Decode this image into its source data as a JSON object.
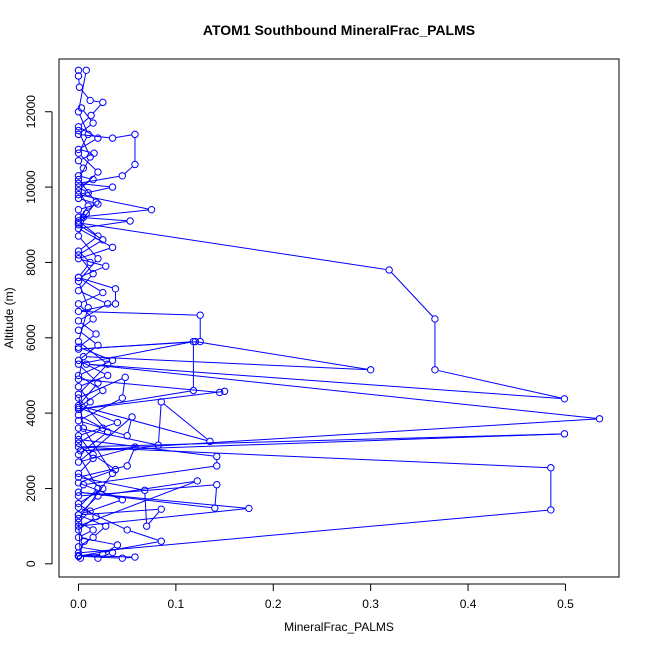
{
  "chart_data": {
    "type": "line",
    "title": "ATOM1 Southbound MineralFrac_PALMS",
    "xlabel": "MineralFrac_PALMS",
    "ylabel": "Altitude (m)",
    "xlim": [
      -0.02,
      0.555
    ],
    "ylim": [
      -350,
      13400
    ],
    "xticks": [
      0.0,
      0.1,
      0.2,
      0.3,
      0.4,
      0.5
    ],
    "xtick_labels": [
      "0.0",
      "0.1",
      "0.2",
      "0.3",
      "0.4",
      "0.5"
    ],
    "yticks": [
      0,
      2000,
      4000,
      6000,
      8000,
      10000,
      12000
    ],
    "ytick_labels": [
      "0",
      "2000",
      "4000",
      "6000",
      "8000",
      "10000",
      "12000"
    ],
    "grid": false,
    "series_color": "#0000ff",
    "marker": "open-circle",
    "series": [
      {
        "points": [
          [
            0.0,
            13100
          ],
          [
            0.0,
            12950
          ],
          [
            0.001,
            12650
          ],
          [
            0.012,
            12300
          ],
          [
            0.025,
            12250
          ],
          [
            0.013,
            11900
          ],
          [
            0.0,
            11600
          ],
          [
            0.02,
            11300
          ],
          [
            0.0,
            11000
          ],
          [
            0.016,
            10900
          ],
          [
            0.0,
            10700
          ],
          [
            0.005,
            10500
          ],
          [
            0.0,
            10300
          ],
          [
            0.015,
            10200
          ],
          [
            0.0,
            10000
          ],
          [
            0.01,
            9850
          ],
          [
            0.0,
            9700
          ],
          [
            0.02,
            9550
          ],
          [
            0.0,
            9400
          ],
          [
            0.005,
            9200
          ],
          [
            0.0,
            9050
          ],
          [
            0.319,
            7800
          ],
          [
            0.366,
            6500
          ],
          [
            0.366,
            5150
          ],
          [
            0.499,
            4380
          ],
          [
            0.008,
            5300
          ],
          [
            0.535,
            3850
          ],
          [
            0.002,
            3000
          ],
          [
            0.499,
            3450
          ],
          [
            0.0,
            3100
          ],
          [
            0.485,
            2550
          ],
          [
            0.485,
            1430
          ],
          [
            0.0,
            290
          ],
          [
            0.002,
            150
          ],
          [
            0.0,
            1200
          ],
          [
            0.035,
            2400
          ],
          [
            0.005,
            3600
          ],
          [
            0.0,
            4500
          ],
          [
            0.03,
            5300
          ],
          [
            0.0,
            5900
          ],
          [
            0.01,
            6800
          ],
          [
            0.0,
            7500
          ],
          [
            0.02,
            8100
          ],
          [
            0.0,
            8700
          ],
          [
            0.008,
            9300
          ]
        ]
      },
      {
        "points": [
          [
            0.003,
            12100
          ],
          [
            0.015,
            11700
          ],
          [
            0.0,
            11400
          ],
          [
            0.035,
            11300
          ],
          [
            0.058,
            11400
          ],
          [
            0.058,
            10600
          ],
          [
            0.045,
            10300
          ],
          [
            0.0,
            10100
          ],
          [
            0.035,
            10000
          ],
          [
            0.0,
            9800
          ],
          [
            0.075,
            9400
          ],
          [
            0.0,
            9200
          ],
          [
            0.053,
            9100
          ],
          [
            0.0,
            8900
          ],
          [
            0.035,
            8400
          ],
          [
            0.0,
            8100
          ],
          [
            0.028,
            7900
          ],
          [
            0.0,
            7600
          ],
          [
            0.038,
            7300
          ],
          [
            0.038,
            6900
          ],
          [
            0.0,
            6700
          ],
          [
            0.125,
            6600
          ],
          [
            0.125,
            5900
          ],
          [
            0.0,
            5700
          ],
          [
            0.12,
            5900
          ],
          [
            0.3,
            5150
          ],
          [
            0.005,
            5500
          ],
          [
            0.0,
            4900
          ],
          [
            0.145,
            4550
          ],
          [
            0.15,
            4580
          ],
          [
            0.0,
            4100
          ],
          [
            0.118,
            4600
          ],
          [
            0.118,
            5900
          ],
          [
            0.0,
            5300
          ],
          [
            0.02,
            4800
          ],
          [
            0.0,
            4200
          ],
          [
            0.135,
            3250
          ],
          [
            0.085,
            4300
          ],
          [
            0.082,
            3150
          ],
          [
            0.0,
            3600
          ]
        ]
      },
      {
        "points": [
          [
            0.0,
            3300
          ],
          [
            0.142,
            2850
          ],
          [
            0.142,
            2600
          ],
          [
            0.005,
            2100
          ],
          [
            0.0,
            1800
          ],
          [
            0.142,
            2100
          ],
          [
            0.14,
            1480
          ],
          [
            0.0,
            1900
          ],
          [
            0.175,
            1470
          ],
          [
            0.0,
            1000
          ],
          [
            0.122,
            2200
          ],
          [
            0.02,
            1800
          ],
          [
            0.0,
            1300
          ],
          [
            0.085,
            1450
          ],
          [
            0.07,
            1000
          ],
          [
            0.068,
            1950
          ],
          [
            0.0,
            2300
          ],
          [
            0.05,
            2600
          ],
          [
            0.058,
            3100
          ],
          [
            0.0,
            2700
          ],
          [
            0.055,
            3900
          ],
          [
            0.05,
            3400
          ],
          [
            0.0,
            3800
          ],
          [
            0.045,
            4400
          ],
          [
            0.048,
            4950
          ],
          [
            0.0,
            4400
          ],
          [
            0.03,
            3500
          ],
          [
            0.0,
            2900
          ],
          [
            0.02,
            2000
          ],
          [
            0.0,
            1500
          ],
          [
            0.05,
            900
          ],
          [
            0.085,
            600
          ],
          [
            0.0,
            200
          ],
          [
            0.045,
            150
          ],
          [
            0.058,
            180
          ],
          [
            0.0,
            220
          ],
          [
            0.025,
            250
          ],
          [
            0.04,
            500
          ],
          [
            0.0,
            700
          ],
          [
            0.015,
            900
          ],
          [
            0.0,
            1100
          ],
          [
            0.012,
            1400
          ]
        ]
      },
      {
        "points": [
          [
            0.0,
            200
          ],
          [
            0.006,
            600
          ],
          [
            0.0,
            900
          ],
          [
            0.018,
            1250
          ],
          [
            0.0,
            1600
          ],
          [
            0.025,
            2000
          ],
          [
            0.0,
            2400
          ],
          [
            0.015,
            2800
          ],
          [
            0.0,
            3200
          ],
          [
            0.025,
            3600
          ],
          [
            0.0,
            3950
          ],
          [
            0.012,
            4300
          ],
          [
            0.0,
            4700
          ],
          [
            0.03,
            5000
          ],
          [
            0.0,
            5400
          ],
          [
            0.02,
            5800
          ],
          [
            0.0,
            6200
          ],
          [
            0.015,
            6500
          ],
          [
            0.0,
            6900
          ],
          [
            0.025,
            7200
          ],
          [
            0.0,
            7600
          ],
          [
            0.012,
            8000
          ],
          [
            0.0,
            8300
          ],
          [
            0.02,
            8700
          ],
          [
            0.0,
            9100
          ],
          [
            0.01,
            9500
          ],
          [
            0.0,
            9900
          ],
          [
            0.02,
            10400
          ],
          [
            0.0,
            10900
          ],
          [
            0.01,
            11400
          ],
          [
            0.0,
            12000
          ],
          [
            0.008,
            13100
          ]
        ]
      },
      {
        "points": [
          [
            0.02,
            150
          ],
          [
            0.035,
            300
          ],
          [
            0.0,
            450
          ],
          [
            0.015,
            700
          ],
          [
            0.028,
            1000
          ],
          [
            0.0,
            1300
          ],
          [
            0.045,
            1700
          ],
          [
            0.0,
            2150
          ],
          [
            0.038,
            2500
          ],
          [
            0.015,
            2900
          ],
          [
            0.0,
            3400
          ],
          [
            0.04,
            3750
          ],
          [
            0.0,
            4150
          ],
          [
            0.025,
            4600
          ],
          [
            0.0,
            5000
          ],
          [
            0.035,
            5400
          ],
          [
            0.0,
            5750
          ],
          [
            0.018,
            6100
          ],
          [
            0.0,
            6450
          ],
          [
            0.03,
            6900
          ],
          [
            0.0,
            7250
          ],
          [
            0.015,
            7700
          ],
          [
            0.0,
            8200
          ],
          [
            0.025,
            8600
          ],
          [
            0.0,
            9000
          ],
          [
            0.018,
            9600
          ],
          [
            0.0,
            10200
          ],
          [
            0.012,
            10800
          ],
          [
            0.0,
            11500
          ]
        ]
      }
    ]
  }
}
